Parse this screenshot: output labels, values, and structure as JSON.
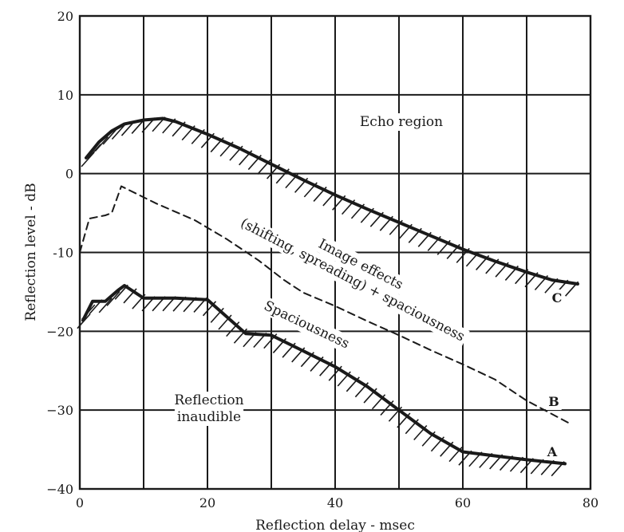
{
  "chart_data": {
    "type": "line",
    "title": "",
    "xlabel": "Reflection delay - msec",
    "ylabel": "Reflection level - dB",
    "xlim": [
      0,
      80
    ],
    "ylim": [
      -40,
      20
    ],
    "x_ticks": [
      "0",
      "20",
      "40",
      "60",
      "80"
    ],
    "y_ticks": [
      "20",
      "10",
      "0",
      "-10",
      "−20",
      "−30",
      "−40"
    ],
    "grid": true,
    "series": [
      {
        "name": "C",
        "style": "solid",
        "hatched": true,
        "points": [
          [
            1,
            2
          ],
          [
            3,
            4
          ],
          [
            5,
            5.4
          ],
          [
            7,
            6.3
          ],
          [
            10,
            6.8
          ],
          [
            13,
            7
          ],
          [
            15,
            6.6
          ],
          [
            20,
            5
          ],
          [
            25,
            3.2
          ],
          [
            30,
            1.2
          ],
          [
            35,
            -0.8
          ],
          [
            40,
            -2.7
          ],
          [
            45,
            -4.5
          ],
          [
            50,
            -6.2
          ],
          [
            55,
            -7.9
          ],
          [
            60,
            -9.6
          ],
          [
            65,
            -11.1
          ],
          [
            70,
            -12.5
          ],
          [
            74,
            -13.5
          ],
          [
            78,
            -14
          ]
        ]
      },
      {
        "name": "B",
        "style": "dashed",
        "hatched": false,
        "points": [
          [
            0,
            -10
          ],
          [
            1.5,
            -5.7
          ],
          [
            4,
            -5.3
          ],
          [
            5,
            -5
          ],
          [
            6.5,
            -1.6
          ],
          [
            12,
            -3.8
          ],
          [
            18,
            -5.9
          ],
          [
            23,
            -8.3
          ],
          [
            28,
            -11
          ],
          [
            32,
            -13.5
          ],
          [
            35,
            -15.1
          ],
          [
            40,
            -16.8
          ],
          [
            45,
            -18.7
          ],
          [
            50,
            -20.5
          ],
          [
            55,
            -22.4
          ],
          [
            60,
            -24.2
          ],
          [
            65,
            -26.1
          ],
          [
            70,
            -28.8
          ],
          [
            77,
            -31.8
          ]
        ]
      },
      {
        "name": "A",
        "style": "solid",
        "hatched": true,
        "points": [
          [
            0.5,
            -18.6
          ],
          [
            2,
            -16.2
          ],
          [
            4,
            -16.2
          ],
          [
            6,
            -14.8
          ],
          [
            7,
            -14.2
          ],
          [
            10,
            -15.8
          ],
          [
            15,
            -15.8
          ],
          [
            20,
            -16
          ],
          [
            26,
            -20.3
          ],
          [
            30,
            -20.5
          ],
          [
            35,
            -22.5
          ],
          [
            40,
            -24.5
          ],
          [
            45,
            -27
          ],
          [
            50,
            -30
          ],
          [
            55,
            -33
          ],
          [
            60,
            -35.3
          ],
          [
            65,
            -35.8
          ],
          [
            70,
            -36.3
          ],
          [
            76,
            -36.8
          ]
        ]
      }
    ],
    "annotations": {
      "echo": "Echo region",
      "image_1": "Image effects",
      "image_2": "(shifting, spreading) + spaciousness",
      "spacious": "Spaciousness",
      "inaudible_1": "Reflection",
      "inaudible_2": "inaudible"
    }
  }
}
